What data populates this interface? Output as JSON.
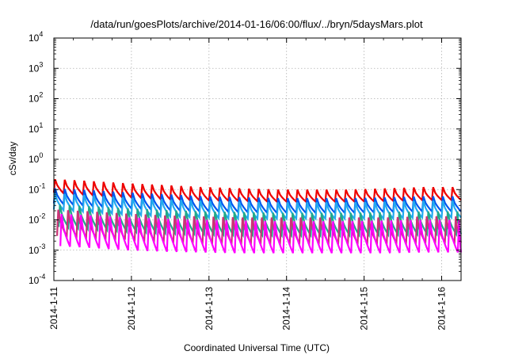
{
  "chart_data": {
    "type": "line",
    "title": "/data/run/goesPlots/archive/2014-01-16/06:00/flux/../bryn/5daysMars.plot",
    "xlabel": "Coordinated Universal Time (UTC)",
    "ylabel": "cSv/day",
    "y_scale": "log",
    "ylim": [
      0.0001,
      10000
    ],
    "xlim": [
      "2014-01-11T00:00",
      "2014-01-16T06:00"
    ],
    "x_ticks": [
      "2014-1-11",
      "2014-1-12",
      "2014-1-13",
      "2014-1-14",
      "2014-1-15",
      "2014-1-16"
    ],
    "y_ticks": [
      {
        "base": "10",
        "exp": "-4",
        "value": 0.0001
      },
      {
        "base": "10",
        "exp": "-3",
        "value": 0.001
      },
      {
        "base": "10",
        "exp": "-2",
        "value": 0.01
      },
      {
        "base": "10",
        "exp": "-1",
        "value": 0.1
      },
      {
        "base": "10",
        "exp": "0",
        "value": 1
      },
      {
        "base": "10",
        "exp": "1",
        "value": 10
      },
      {
        "base": "10",
        "exp": "2",
        "value": 100
      },
      {
        "base": "10",
        "exp": "3",
        "value": 1000
      },
      {
        "base": "10",
        "exp": "4",
        "value": 10000
      }
    ],
    "grid": true,
    "sawtooth_period_hours": 3,
    "series": [
      {
        "color": "#ee0000",
        "start": "2014-01-11T00:00",
        "peak": [
          0.22,
          0.19,
          0.16,
          0.14,
          0.12,
          0.11,
          0.1,
          0.1,
          0.1,
          0.11,
          0.12,
          0.12
        ],
        "trough": [
          0.08,
          0.065,
          0.055,
          0.048,
          0.044,
          0.042,
          0.04,
          0.04,
          0.04,
          0.042,
          0.045,
          0.045
        ]
      },
      {
        "color": "#0055ee",
        "start": "2014-01-11T00:00",
        "peak": [
          0.11,
          0.095,
          0.08,
          0.07,
          0.06,
          0.056,
          0.052,
          0.052,
          0.052,
          0.055,
          0.06,
          0.06
        ],
        "trough": [
          0.035,
          0.028,
          0.024,
          0.021,
          0.019,
          0.018,
          0.017,
          0.017,
          0.017,
          0.018,
          0.019,
          0.019
        ]
      },
      {
        "color": "#22aaee",
        "start": "2014-01-11T00:00",
        "peak": [
          0.075,
          0.065,
          0.055,
          0.048,
          0.043,
          0.04,
          0.038,
          0.038,
          0.038,
          0.04,
          0.043,
          0.043
        ],
        "trough": [
          0.022,
          0.018,
          0.015,
          0.013,
          0.012,
          0.011,
          0.011,
          0.011,
          0.011,
          0.011,
          0.012,
          0.012
        ]
      },
      {
        "color": "#22aa88",
        "start": "2014-01-11T01:30",
        "peak": [
          0.032,
          0.028,
          0.024,
          0.021,
          0.019,
          0.018,
          0.017,
          0.017,
          0.017,
          0.018,
          0.019,
          0.019
        ],
        "trough": [
          0.006,
          0.005,
          0.0042,
          0.0037,
          0.0034,
          0.0032,
          0.0031,
          0.0031,
          0.0031,
          0.0032,
          0.0034,
          0.0034
        ]
      },
      {
        "color": "#cc3377",
        "start": "2014-01-11T01:00",
        "peak": [
          0.022,
          0.019,
          0.016,
          0.014,
          0.013,
          0.012,
          0.012,
          0.012,
          0.012,
          0.012,
          0.013,
          0.013
        ],
        "trough": [
          0.003,
          0.0026,
          0.0022,
          0.002,
          0.0018,
          0.0017,
          0.0017,
          0.0017,
          0.0017,
          0.0017,
          0.0018,
          0.0018
        ]
      },
      {
        "color": "#ff00ff",
        "start": "2014-01-11T02:00",
        "peak": [
          0.016,
          0.014,
          0.012,
          0.011,
          0.01,
          0.0095,
          0.009,
          0.009,
          0.009,
          0.0095,
          0.01,
          0.01
        ],
        "trough": [
          0.0014,
          0.0012,
          0.001,
          0.0009,
          0.00085,
          0.0008,
          0.0008,
          0.0008,
          0.0008,
          0.0008,
          0.00085,
          0.00085
        ]
      }
    ]
  }
}
